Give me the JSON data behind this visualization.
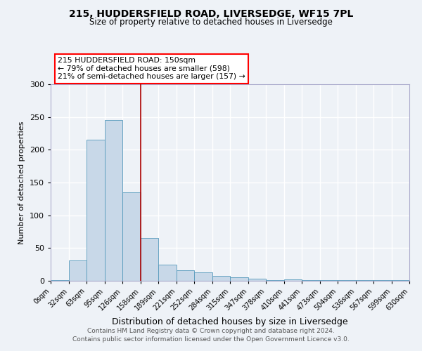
{
  "title1": "215, HUDDERSFIELD ROAD, LIVERSEDGE, WF15 7PL",
  "title2": "Size of property relative to detached houses in Liversedge",
  "xlabel": "Distribution of detached houses by size in Liversedge",
  "ylabel": "Number of detached properties",
  "bin_labels": [
    "0sqm",
    "32sqm",
    "63sqm",
    "95sqm",
    "126sqm",
    "158sqm",
    "189sqm",
    "221sqm",
    "252sqm",
    "284sqm",
    "315sqm",
    "347sqm",
    "378sqm",
    "410sqm",
    "441sqm",
    "473sqm",
    "504sqm",
    "536sqm",
    "567sqm",
    "599sqm",
    "630sqm"
  ],
  "bin_edges": [
    0,
    32,
    63,
    95,
    126,
    158,
    189,
    221,
    252,
    284,
    315,
    347,
    378,
    410,
    441,
    473,
    504,
    536,
    567,
    599,
    630
  ],
  "bar_values": [
    1,
    31,
    215,
    245,
    135,
    65,
    25,
    16,
    13,
    8,
    5,
    3,
    1,
    2,
    1,
    1,
    1,
    1,
    1,
    1,
    2
  ],
  "bar_color": "#c8d8e8",
  "bar_edge_color": "#5599bb",
  "red_line_x": 158,
  "annotation_text": "215 HUDDERSFIELD ROAD: 150sqm\n← 79% of detached houses are smaller (598)\n21% of semi-detached houses are larger (157) →",
  "annotation_box_color": "white",
  "annotation_box_edge_color": "red",
  "red_line_color": "#aa0000",
  "footer1": "Contains HM Land Registry data © Crown copyright and database right 2024.",
  "footer2": "Contains public sector information licensed under the Open Government Licence v3.0.",
  "ylim": [
    0,
    300
  ],
  "yticks": [
    0,
    50,
    100,
    150,
    200,
    250,
    300
  ],
  "bg_color": "#eef2f7",
  "plot_bg_color": "#eef2f7",
  "grid_color": "#ffffff",
  "spine_color": "#aaaacc"
}
